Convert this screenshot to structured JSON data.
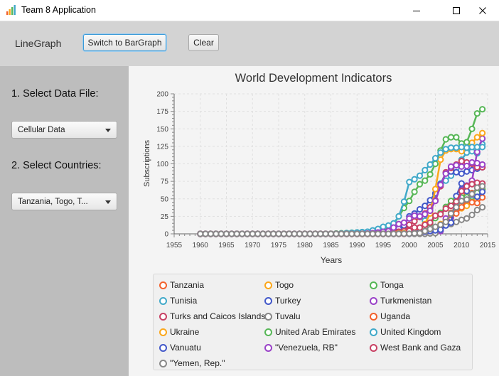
{
  "window": {
    "title": "Team 8 Application"
  },
  "toolbar": {
    "mode_label": "LineGraph",
    "switch_label": "Switch to BarGraph",
    "clear_label": "Clear"
  },
  "sidebar": {
    "step1_label": "1. Select Data File:",
    "data_file_value": "Cellular Data",
    "step2_label": "2. Select Countries:",
    "countries_value": "Tanzania, Togo, T..."
  },
  "colors": {
    "orange": "#f3622d",
    "gold": "#fba71b",
    "green": "#57b757",
    "cyan": "#41a9c9",
    "blue": "#4258c9",
    "purple": "#9a42c8",
    "red": "#c84164",
    "gray": "#888888"
  },
  "chart_data": {
    "type": "line",
    "title": "World Development Indicators",
    "xlabel": "Years",
    "ylabel": "Subscriptions",
    "xlim": [
      1955,
      2015
    ],
    "ylim": [
      0,
      200
    ],
    "x_ticks": [
      "1955",
      "1960",
      "1965",
      "1970",
      "1975",
      "1980",
      "1985",
      "1990",
      "1995",
      "2000",
      "2005",
      "2010",
      "2015"
    ],
    "y_ticks": [
      "0",
      "25",
      "50",
      "75",
      "100",
      "125",
      "150",
      "175",
      "200"
    ],
    "grid": true,
    "legend_position": "bottom",
    "series": [
      {
        "name": "Tanzania",
        "color": "#f3622d",
        "points": [
          [
            1960,
            0
          ],
          [
            1995,
            0
          ],
          [
            2000,
            0.3
          ],
          [
            2003,
            2
          ],
          [
            2005,
            5
          ],
          [
            2007,
            20
          ],
          [
            2009,
            40
          ],
          [
            2011,
            56
          ],
          [
            2014,
            63
          ]
        ]
      },
      {
        "name": "Togo",
        "color": "#fba71b",
        "points": [
          [
            1960,
            0
          ],
          [
            1997,
            0
          ],
          [
            2000,
            1
          ],
          [
            2003,
            4
          ],
          [
            2005,
            8
          ],
          [
            2007,
            20
          ],
          [
            2009,
            33
          ],
          [
            2011,
            40
          ],
          [
            2014,
            63
          ]
        ]
      },
      {
        "name": "Tonga",
        "color": "#57b757",
        "points": [
          [
            1960,
            0
          ],
          [
            1998,
            0
          ],
          [
            2000,
            0.5
          ],
          [
            2002,
            3
          ],
          [
            2004,
            15
          ],
          [
            2006,
            30
          ],
          [
            2008,
            47
          ],
          [
            2010,
            52
          ],
          [
            2012,
            53
          ],
          [
            2014,
            64
          ]
        ]
      },
      {
        "name": "Tunisia",
        "color": "#41a9c9",
        "points": [
          [
            1960,
            0
          ],
          [
            1993,
            0
          ],
          [
            1996,
            0.1
          ],
          [
            1998,
            0.4
          ],
          [
            1999,
            1
          ],
          [
            2000,
            1.2
          ],
          [
            2001,
            4
          ],
          [
            2002,
            5
          ],
          [
            2003,
            19
          ],
          [
            2004,
            36
          ],
          [
            2005,
            57
          ],
          [
            2006,
            72
          ],
          [
            2007,
            76
          ],
          [
            2008,
            83
          ],
          [
            2009,
            93
          ],
          [
            2010,
            106
          ],
          [
            2011,
            116
          ],
          [
            2012,
            118
          ],
          [
            2013,
            115
          ],
          [
            2014,
            128
          ]
        ]
      },
      {
        "name": "Turkey",
        "color": "#4258c9",
        "points": [
          [
            1960,
            0
          ],
          [
            1986,
            0
          ],
          [
            1990,
            0.1
          ],
          [
            1994,
            0.3
          ],
          [
            1997,
            3
          ],
          [
            1999,
            12
          ],
          [
            2000,
            25
          ],
          [
            2001,
            29
          ],
          [
            2002,
            35
          ],
          [
            2003,
            40
          ],
          [
            2004,
            48
          ],
          [
            2005,
            58
          ],
          [
            2006,
            71
          ],
          [
            2007,
            87
          ],
          [
            2008,
            89
          ],
          [
            2009,
            88
          ],
          [
            2010,
            86
          ],
          [
            2011,
            89
          ],
          [
            2012,
            91
          ],
          [
            2013,
            93
          ],
          [
            2014,
            95
          ]
        ]
      },
      {
        "name": "Turkmenistan",
        "color": "#9a42c8",
        "points": [
          [
            1960,
            0
          ],
          [
            1997,
            0
          ],
          [
            2002,
            0.2
          ],
          [
            2004,
            1
          ],
          [
            2005,
            2
          ],
          [
            2006,
            4
          ],
          [
            2007,
            22
          ],
          [
            2008,
            23
          ],
          [
            2009,
            30
          ],
          [
            2010,
            63
          ],
          [
            2011,
            69
          ],
          [
            2012,
            76
          ],
          [
            2013,
            117
          ],
          [
            2014,
            136
          ]
        ]
      },
      {
        "name": "Turks and Caicos Islands",
        "color": "#c84164",
        "points": [
          [
            1960,
            0
          ],
          [
            1995,
            0
          ],
          [
            1997,
            2
          ],
          [
            1999,
            4
          ],
          [
            2000,
            13
          ],
          [
            2001,
            18
          ],
          [
            2002,
            24
          ],
          [
            2003,
            29
          ],
          [
            2004,
            38
          ],
          [
            2005,
            48
          ],
          [
            2006,
            68
          ],
          [
            2007,
            88
          ],
          [
            2008,
            94
          ],
          [
            2009,
            99
          ],
          [
            2010,
            104
          ],
          [
            2011,
            102
          ],
          [
            2012,
            100
          ],
          [
            2013,
            95
          ],
          [
            2014,
            95
          ]
        ]
      },
      {
        "name": "Tuvalu",
        "color": "#888888",
        "points": [
          [
            1960,
            0
          ],
          [
            2003,
            0
          ],
          [
            2005,
            1
          ],
          [
            2006,
            10
          ],
          [
            2008,
            14
          ],
          [
            2009,
            17
          ],
          [
            2010,
            20
          ],
          [
            2011,
            22
          ],
          [
            2012,
            27
          ],
          [
            2013,
            34
          ],
          [
            2014,
            38
          ]
        ]
      },
      {
        "name": "Uganda",
        "color": "#f3622d",
        "points": [
          [
            1960,
            0
          ],
          [
            1995,
            0
          ],
          [
            1998,
            0.3
          ],
          [
            2000,
            0.8
          ],
          [
            2002,
            2
          ],
          [
            2004,
            4
          ],
          [
            2006,
            7
          ],
          [
            2008,
            27
          ],
          [
            2009,
            29
          ],
          [
            2010,
            38
          ],
          [
            2011,
            48
          ],
          [
            2012,
            45
          ],
          [
            2013,
            44
          ],
          [
            2014,
            52
          ]
        ]
      },
      {
        "name": "Ukraine",
        "color": "#fba71b",
        "points": [
          [
            1960,
            0
          ],
          [
            1993,
            0
          ],
          [
            1997,
            0.5
          ],
          [
            2000,
            1.6
          ],
          [
            2001,
            4
          ],
          [
            2002,
            8
          ],
          [
            2003,
            14
          ],
          [
            2004,
            29
          ],
          [
            2005,
            64
          ],
          [
            2006,
            106
          ],
          [
            2007,
            119
          ],
          [
            2008,
            121
          ],
          [
            2009,
            121
          ],
          [
            2010,
            118
          ],
          [
            2011,
            123
          ],
          [
            2012,
            130
          ],
          [
            2013,
            138
          ],
          [
            2014,
            144
          ]
        ]
      },
      {
        "name": "United Arab Emirates",
        "color": "#57b757",
        "points": [
          [
            1960,
            0
          ],
          [
            1984,
            0
          ],
          [
            1986,
            0.5
          ],
          [
            1990,
            2
          ],
          [
            1993,
            3
          ],
          [
            1994,
            5
          ],
          [
            1995,
            7
          ],
          [
            1996,
            10
          ],
          [
            1997,
            13
          ],
          [
            1998,
            25
          ],
          [
            1999,
            37
          ],
          [
            2000,
            47
          ],
          [
            2001,
            60
          ],
          [
            2002,
            71
          ],
          [
            2003,
            76
          ],
          [
            2004,
            85
          ],
          [
            2005,
            100
          ],
          [
            2006,
            119
          ],
          [
            2007,
            135
          ],
          [
            2008,
            138
          ],
          [
            2009,
            138
          ],
          [
            2010,
            129
          ],
          [
            2011,
            131
          ],
          [
            2012,
            150
          ],
          [
            2013,
            172
          ],
          [
            2014,
            178
          ]
        ]
      },
      {
        "name": "United Kingdom",
        "color": "#41a9c9",
        "points": [
          [
            1960,
            0
          ],
          [
            1985,
            0
          ],
          [
            1987,
            0.5
          ],
          [
            1990,
            2
          ],
          [
            1992,
            3
          ],
          [
            1994,
            7
          ],
          [
            1995,
            10
          ],
          [
            1996,
            12
          ],
          [
            1997,
            15
          ],
          [
            1998,
            25
          ],
          [
            1999,
            46
          ],
          [
            2000,
            74
          ],
          [
            2001,
            78
          ],
          [
            2002,
            83
          ],
          [
            2003,
            91
          ],
          [
            2004,
            99
          ],
          [
            2005,
            108
          ],
          [
            2006,
            116
          ],
          [
            2007,
            121
          ],
          [
            2008,
            123
          ],
          [
            2009,
            123
          ],
          [
            2010,
            124
          ],
          [
            2011,
            123
          ],
          [
            2012,
            124
          ],
          [
            2013,
            124
          ],
          [
            2014,
            124
          ]
        ]
      },
      {
        "name": "Vanuatu",
        "color": "#4258c9",
        "points": [
          [
            1960,
            0
          ],
          [
            1997,
            0
          ],
          [
            2000,
            0.2
          ],
          [
            2002,
            2
          ],
          [
            2004,
            4
          ],
          [
            2006,
            6
          ],
          [
            2007,
            12
          ],
          [
            2008,
            16
          ],
          [
            2009,
            54
          ],
          [
            2010,
            72
          ],
          [
            2011,
            61
          ],
          [
            2012,
            56
          ],
          [
            2013,
            53
          ],
          [
            2014,
            60
          ]
        ]
      },
      {
        "name": "\"Venezuela, RB\"",
        "color": "#9a42c8",
        "points": [
          [
            1960,
            0
          ],
          [
            1990,
            0
          ],
          [
            1992,
            0.5
          ],
          [
            1994,
            2
          ],
          [
            1996,
            4
          ],
          [
            1997,
            9
          ],
          [
            1998,
            14
          ],
          [
            1999,
            16
          ],
          [
            2000,
            22
          ],
          [
            2001,
            26
          ],
          [
            2002,
            25
          ],
          [
            2003,
            28
          ],
          [
            2004,
            33
          ],
          [
            2005,
            47
          ],
          [
            2006,
            70
          ],
          [
            2007,
            86
          ],
          [
            2008,
            96
          ],
          [
            2009,
            98
          ],
          [
            2010,
            96
          ],
          [
            2011,
            97
          ],
          [
            2012,
            102
          ],
          [
            2013,
            101
          ],
          [
            2014,
            99
          ]
        ]
      },
      {
        "name": "West Bank and Gaza",
        "color": "#c84164",
        "points": [
          [
            1960,
            0
          ],
          [
            1999,
            0
          ],
          [
            2001,
            9
          ],
          [
            2002,
            9
          ],
          [
            2003,
            13
          ],
          [
            2004,
            16
          ],
          [
            2005,
            26
          ],
          [
            2006,
            28
          ],
          [
            2007,
            36
          ],
          [
            2008,
            40
          ],
          [
            2009,
            46
          ],
          [
            2010,
            61
          ],
          [
            2011,
            68
          ],
          [
            2012,
            71
          ],
          [
            2013,
            73
          ],
          [
            2014,
            72
          ]
        ]
      },
      {
        "name": "\"Yemen, Rep.\"",
        "color": "#888888",
        "points": [
          [
            1960,
            0
          ],
          [
            1998,
            0
          ],
          [
            2000,
            0.2
          ],
          [
            2002,
            1
          ],
          [
            2003,
            4
          ],
          [
            2004,
            7
          ],
          [
            2005,
            10
          ],
          [
            2006,
            13
          ],
          [
            2007,
            17
          ],
          [
            2008,
            29
          ],
          [
            2009,
            38
          ],
          [
            2010,
            47
          ],
          [
            2011,
            49
          ],
          [
            2012,
            57
          ],
          [
            2013,
            66
          ],
          [
            2014,
            68
          ]
        ]
      }
    ]
  }
}
